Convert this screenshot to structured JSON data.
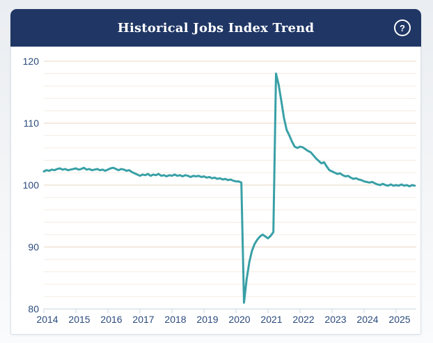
{
  "header": {
    "title": "Historical Jobs Index Trend",
    "help_icon_glyph": "?"
  },
  "colors": {
    "header_bg": "#203765",
    "header_text": "#ffffff",
    "card_bg": "#ffffff",
    "card_border": "#d9e2ea",
    "line": "#38a0a6",
    "gridline_minor": "#f4ebe1",
    "gridline_major": "#e7d5c3",
    "axis": "#c7d4e2",
    "axis_label": "#2a4a7b"
  },
  "chart_data": {
    "type": "line",
    "title": "Historical Jobs Index Trend",
    "xlabel": "",
    "ylabel": "",
    "ylim": [
      80,
      120
    ],
    "y_tick_labels": [
      "80",
      "90",
      "100",
      "110",
      "120"
    ],
    "y_minor_grid_step": 2,
    "x_tick_labels": [
      "2014",
      "2015",
      "2016",
      "2017",
      "2018",
      "2019",
      "2020",
      "2021",
      "2022",
      "2023",
      "2024",
      "2025"
    ],
    "x_start": "2014-01",
    "x_end": "2025-08",
    "grid": "horizontal",
    "legend_position": "none",
    "series": [
      {
        "name": "Jobs Index",
        "color": "#38a0a6",
        "monthly_by_year": [
          {
            "year": 2014,
            "values": [
              102.2,
              102.4,
              102.3,
              102.5,
              102.4,
              102.6,
              102.7,
              102.5,
              102.6,
              102.4,
              102.5,
              102.6
            ]
          },
          {
            "year": 2015,
            "values": [
              102.7,
              102.5,
              102.6,
              102.8,
              102.5,
              102.6,
              102.4,
              102.5,
              102.6,
              102.4,
              102.5,
              102.3
            ]
          },
          {
            "year": 2016,
            "values": [
              102.5,
              102.7,
              102.8,
              102.6,
              102.4,
              102.6,
              102.5,
              102.3,
              102.4,
              102.1,
              101.9,
              101.7
            ]
          },
          {
            "year": 2017,
            "values": [
              101.5,
              101.7,
              101.6,
              101.8,
              101.5,
              101.7,
              101.6,
              101.8,
              101.5,
              101.6,
              101.4,
              101.6
            ]
          },
          {
            "year": 2018,
            "values": [
              101.5,
              101.7,
              101.5,
              101.6,
              101.4,
              101.6,
              101.5,
              101.3,
              101.5,
              101.4,
              101.5,
              101.3
            ]
          },
          {
            "year": 2019,
            "values": [
              101.4,
              101.2,
              101.3,
              101.1,
              101.2,
              101.0,
              101.1,
              100.9,
              101.0,
              100.8,
              100.9,
              100.7
            ]
          },
          {
            "year": 2020,
            "values": [
              100.6,
              100.6,
              100.4,
              81.0,
              84.8,
              87.6,
              89.4,
              90.5,
              91.2,
              91.7,
              92.0,
              91.7
            ]
          },
          {
            "year": 2021,
            "values": [
              91.4,
              91.8,
              92.4,
              118.0,
              116.2,
              113.5,
              110.8,
              108.9,
              108.0,
              107.0,
              106.2,
              106.0
            ]
          },
          {
            "year": 2022,
            "values": [
              106.2,
              106.1,
              105.8,
              105.5,
              105.3,
              104.8,
              104.3,
              103.9,
              103.5,
              103.7,
              103.0,
              102.4
            ]
          },
          {
            "year": 2023,
            "values": [
              102.2,
              102.0,
              101.8,
              101.9,
              101.6,
              101.4,
              101.5,
              101.2,
              101.0,
              101.1,
              100.9,
              100.8
            ]
          },
          {
            "year": 2024,
            "values": [
              100.6,
              100.5,
              100.4,
              100.5,
              100.3,
              100.1,
              100.0,
              100.2,
              100.0,
              99.9,
              100.1,
              99.9
            ]
          },
          {
            "year": 2025,
            "values": [
              100.0,
              99.9,
              100.1,
              99.9,
              100.0,
              99.8,
              100.0,
              99.9
            ]
          }
        ]
      }
    ]
  }
}
